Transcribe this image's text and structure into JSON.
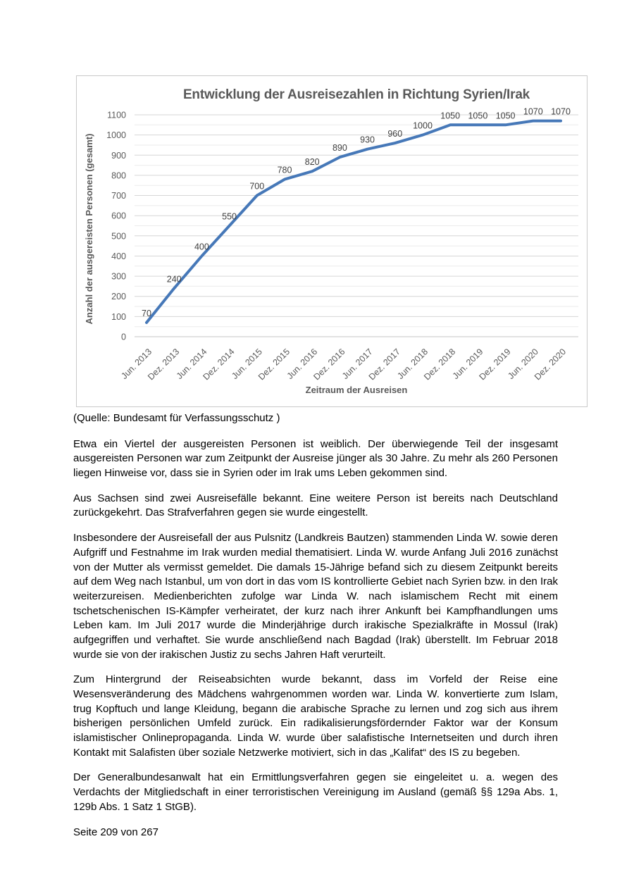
{
  "page": {
    "source_caption": "(Quelle: Bundesamt für Verfassungsschutz )",
    "footer": "Seite 209 von 267"
  },
  "paragraphs": [
    "Etwa ein Viertel der ausgereisten Personen ist weiblich. Der überwiegende Teil der insgesamt ausgereisten Personen war zum Zeitpunkt der Ausreise jünger als 30 Jahre. Zu mehr als 260 Personen liegen Hinweise vor, dass sie in Syrien oder im Irak ums Leben gekommen sind.",
    "Aus Sachsen sind zwei Ausreisefälle bekannt. Eine weitere Person ist bereits nach Deutschland zurückgekehrt. Das Strafverfahren gegen sie wurde eingestellt.",
    "Insbesondere der Ausreisefall der aus Pulsnitz (Landkreis Bautzen) stammenden Linda W. sowie deren Aufgriff und Festnahme im Irak wurden medial thematisiert. Linda W. wurde Anfang Juli 2016 zunächst von der Mutter als vermisst gemeldet. Die damals 15-Jährige befand sich zu diesem Zeitpunkt bereits auf dem Weg nach Istanbul, um von dort in das vom IS kontrollierte Gebiet nach Syrien bzw. in den Irak weiterzureisen. Medienberichten zufolge war Linda W. nach islamischem Recht mit einem tschetschenischen IS-Kämpfer verheiratet, der kurz nach ihrer Ankunft bei Kampfhandlungen ums Leben kam. Im Juli 2017 wurde die Minderjährige durch irakische Spezialkräfte in Mossul (Irak) aufgegriffen und verhaftet. Sie wurde anschließend nach Bagdad (Irak) überstellt. Im Februar 2018 wurde sie von der irakischen Justiz zu sechs Jahren Haft verurteilt.",
    "Zum Hintergrund der Reiseabsichten wurde bekannt, dass im Vorfeld der Reise eine Wesensveränderung des Mädchens wahrgenommen worden war. Linda W. konvertierte zum Islam, trug Kopftuch und lange Kleidung, begann die arabische Sprache zu lernen und zog sich aus ihrem bisherigen persönlichen Umfeld zurück. Ein radikalisierungsfördernder Faktor war der Konsum islamistischer Onlinepropaganda. Linda W. wurde über salafistische Internetseiten und durch ihren Kontakt mit Salafisten über soziale Netzwerke motiviert, sich in das „Kalifat“ des IS zu begeben.",
    "Der Generalbundesanwalt hat ein Ermittlungsverfahren gegen sie eingeleitet u. a. wegen des Verdachts der Mitgliedschaft in einer terroristischen Vereinigung im Ausland (gemäß §§ 129a Abs. 1, 129b Abs. 1 Satz 1 StGB)."
  ],
  "chart_data": {
    "type": "line",
    "title": "Entwicklung der Ausreisezahlen in Richtung Syrien/Irak",
    "xlabel": "Zeitraum der Ausreisen",
    "ylabel": "Anzahl der ausgereisten Personen (gesamt)",
    "categories": [
      "Jun. 2013",
      "Dez. 2013",
      "Jun. 2014",
      "Dez. 2014",
      "Jun. 2015",
      "Dez. 2015",
      "Jun. 2016",
      "Dez. 2016",
      "Jun. 2017",
      "Dez. 2017",
      "Jun. 2018",
      "Dez. 2018",
      "Jun. 2019",
      "Dez. 2019",
      "Jun. 2020",
      "Dez. 2020"
    ],
    "values": [
      70,
      240,
      400,
      550,
      700,
      780,
      820,
      890,
      930,
      960,
      1000,
      1050,
      1050,
      1050,
      1070,
      1070
    ],
    "ylim": [
      0,
      1100
    ],
    "y_major": 100,
    "y_minor": 50,
    "y_ticks": [
      "0",
      "100",
      "200",
      "300",
      "400",
      "500",
      "600",
      "700",
      "800",
      "900",
      "1000",
      "1100"
    ],
    "grid": true,
    "data_labels": true,
    "legend": "none",
    "line_color": "#4678b8",
    "major_grid_color": "#d6d6d6",
    "minor_grid_color": "#ebebeb",
    "baseline_color": "#c6c6c6",
    "axis_text_color": "#595959",
    "data_label_color": "#3f3f3f"
  }
}
